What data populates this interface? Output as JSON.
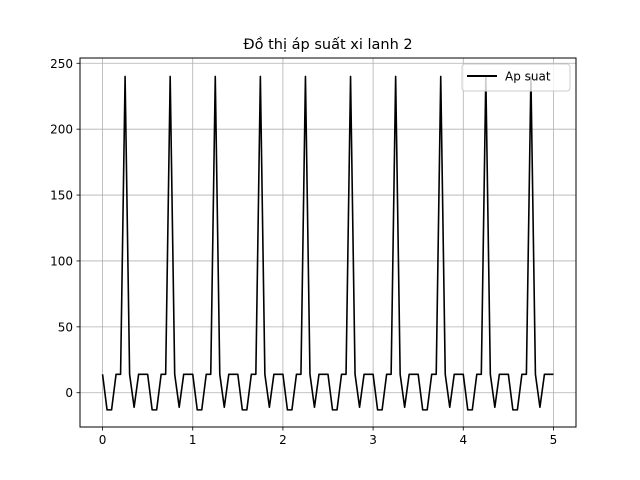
{
  "chart_data": {
    "type": "line",
    "title": "Đồ thị áp suất xi lanh 2",
    "xlabel": "",
    "ylabel": "",
    "xlim": [
      -0.25,
      5.25
    ],
    "ylim": [
      -26,
      254
    ],
    "xticks": [
      0,
      1,
      2,
      3,
      4,
      5
    ],
    "yticks": [
      0,
      50,
      100,
      150,
      200,
      250
    ],
    "grid": true,
    "legend_position": "top-right",
    "colors": {
      "line": "#000000",
      "grid": "#b0b0b0"
    },
    "series": [
      {
        "name": "Ap suat",
        "x": [
          0,
          0.05,
          0.1,
          0.15,
          0.2,
          0.25,
          0.3,
          0.35,
          0.4,
          0.45,
          0.5,
          0.55,
          0.6,
          0.65,
          0.7,
          0.75,
          0.8,
          0.85,
          0.9,
          0.95,
          1.0,
          1.05,
          1.1,
          1.15,
          1.2,
          1.25,
          1.3,
          1.35,
          1.4,
          1.45,
          1.5,
          1.55,
          1.6,
          1.65,
          1.7,
          1.75,
          1.8,
          1.85,
          1.9,
          1.95,
          2.0,
          2.05,
          2.1,
          2.15,
          2.2,
          2.25,
          2.3,
          2.35,
          2.4,
          2.45,
          2.5,
          2.55,
          2.6,
          2.65,
          2.7,
          2.75,
          2.8,
          2.85,
          2.9,
          2.95,
          3.0,
          3.05,
          3.1,
          3.15,
          3.2,
          3.25,
          3.3,
          3.35,
          3.4,
          3.45,
          3.5,
          3.55,
          3.6,
          3.65,
          3.7,
          3.75,
          3.8,
          3.85,
          3.9,
          3.95,
          4.0,
          4.05,
          4.1,
          4.15,
          4.2,
          4.25,
          4.3,
          4.35,
          4.4,
          4.45,
          4.5,
          4.55,
          4.6,
          4.65,
          4.7,
          4.75,
          4.8,
          4.85,
          4.9,
          4.95,
          5.0
        ],
        "y": [
          14,
          -13,
          -13,
          14,
          14,
          240,
          14,
          -11,
          14,
          14,
          14,
          -13,
          -13,
          14,
          14,
          240,
          14,
          -11,
          14,
          14,
          14,
          -13,
          -13,
          14,
          14,
          240,
          14,
          -11,
          14,
          14,
          14,
          -13,
          -13,
          14,
          14,
          240,
          14,
          -11,
          14,
          14,
          14,
          -13,
          -13,
          14,
          14,
          240,
          14,
          -11,
          14,
          14,
          14,
          -13,
          -13,
          14,
          14,
          240,
          14,
          -11,
          14,
          14,
          14,
          -13,
          -13,
          14,
          14,
          240,
          14,
          -11,
          14,
          14,
          14,
          -13,
          -13,
          14,
          14,
          240,
          14,
          -11,
          14,
          14,
          14,
          -13,
          -13,
          14,
          14,
          240,
          14,
          -11,
          14,
          14,
          14,
          -13,
          -13,
          14,
          14,
          240,
          14,
          -11,
          14,
          14,
          14
        ]
      }
    ]
  }
}
